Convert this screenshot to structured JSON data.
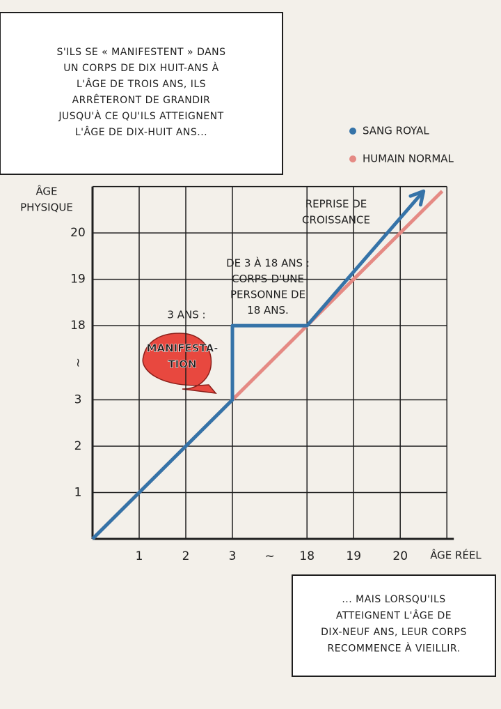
{
  "chart_data": {
    "type": "line",
    "caption_top": [
      "S'ILS SE « MANIFESTENT » DANS",
      "UN CORPS DE DIX HUIT-ANS À",
      "L'ÂGE DE TROIS ANS, ILS",
      "ARRÊTERONT DE GRANDIR",
      "JUSQU'À CE QU'ILS ATTEIGNENT",
      "L'ÂGE DE DIX-HUIT ANS..."
    ],
    "caption_bottom": [
      "... MAIS LORSQU'ILS",
      "ATTEIGNENT L'ÂGE DE",
      "DIX-NEUF ANS, LEUR CORPS",
      "RECOMMENCE À VIEILLIR."
    ],
    "y_label": [
      "ÂGE",
      "PHYSIQUE"
    ],
    "x_label": "ÂGE RÉEL",
    "xlim": [
      0,
      21
    ],
    "ylim": [
      0,
      21
    ],
    "xticks": [
      1,
      2,
      3,
      18,
      19,
      20
    ],
    "yticks": [
      1,
      2,
      3,
      18,
      19,
      20
    ],
    "x_break_label": "~",
    "y_break_label": "~",
    "grid": true,
    "series": [
      {
        "name": "HUMAIN NORMAL",
        "color": "#e58a84",
        "x": [
          0,
          3,
          18,
          20.9
        ],
        "values": [
          0,
          3,
          18,
          20.9
        ]
      },
      {
        "name": "SANG ROYAL",
        "color": "#3573a8",
        "x": [
          0,
          1,
          2,
          3,
          3,
          18,
          20.5
        ],
        "values": [
          0,
          1,
          2,
          3,
          18,
          18,
          20.9
        ]
      }
    ],
    "annotations": {
      "three_years": "3 ANS :",
      "manifestation": [
        "MANIFESTA-",
        "TION"
      ],
      "body": [
        "DE 3 À 18 ANS :",
        "CORPS-D'UNE",
        "PERSONNE DE",
        "18 ANS."
      ],
      "regrowth": [
        "REPRISE DE",
        "CROISSANCE"
      ]
    }
  }
}
